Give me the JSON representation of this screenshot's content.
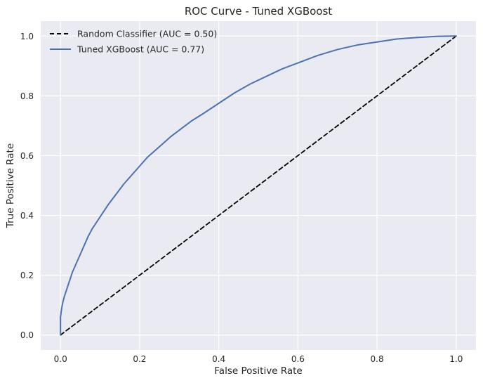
{
  "chart_data": {
    "type": "line",
    "title": "ROC Curve - Tuned XGBoost",
    "xlabel": "False Positive Rate",
    "ylabel": "True Positive Rate",
    "xlim": [
      -0.05,
      1.05
    ],
    "ylim": [
      -0.05,
      1.05
    ],
    "xticks": [
      0.0,
      0.2,
      0.4,
      0.6,
      0.8,
      1.0
    ],
    "yticks": [
      0.0,
      0.2,
      0.4,
      0.6,
      0.8,
      1.0
    ],
    "xtick_labels": [
      "0.0",
      "0.2",
      "0.4",
      "0.6",
      "0.8",
      "1.0"
    ],
    "ytick_labels": [
      "0.0",
      "0.2",
      "0.4",
      "0.6",
      "0.8",
      "1.0"
    ],
    "grid": true,
    "legend_position": "top-left",
    "background_color": "#eaeaf2",
    "series": [
      {
        "name": "Random Classifier (AUC = 0.50)",
        "color": "#000000",
        "style": "dashed",
        "x": [
          0.0,
          1.0
        ],
        "y": [
          0.0,
          1.0
        ]
      },
      {
        "name": "Tuned XGBoost (AUC = 0.77)",
        "color": "#4c72b0",
        "style": "solid",
        "x": [
          0.0,
          0.0,
          0.003,
          0.006,
          0.01,
          0.015,
          0.02,
          0.025,
          0.03,
          0.035,
          0.04,
          0.05,
          0.06,
          0.07,
          0.08,
          0.09,
          0.1,
          0.12,
          0.14,
          0.16,
          0.18,
          0.2,
          0.22,
          0.25,
          0.28,
          0.3,
          0.33,
          0.36,
          0.4,
          0.44,
          0.48,
          0.52,
          0.56,
          0.6,
          0.65,
          0.7,
          0.75,
          0.8,
          0.85,
          0.9,
          0.95,
          1.0
        ],
        "y": [
          0.0,
          0.06,
          0.09,
          0.11,
          0.13,
          0.15,
          0.17,
          0.19,
          0.21,
          0.225,
          0.24,
          0.27,
          0.3,
          0.33,
          0.355,
          0.375,
          0.395,
          0.435,
          0.47,
          0.505,
          0.535,
          0.565,
          0.595,
          0.63,
          0.665,
          0.685,
          0.715,
          0.74,
          0.775,
          0.81,
          0.84,
          0.865,
          0.89,
          0.91,
          0.935,
          0.955,
          0.97,
          0.98,
          0.99,
          0.995,
          0.999,
          1.0
        ]
      }
    ]
  }
}
